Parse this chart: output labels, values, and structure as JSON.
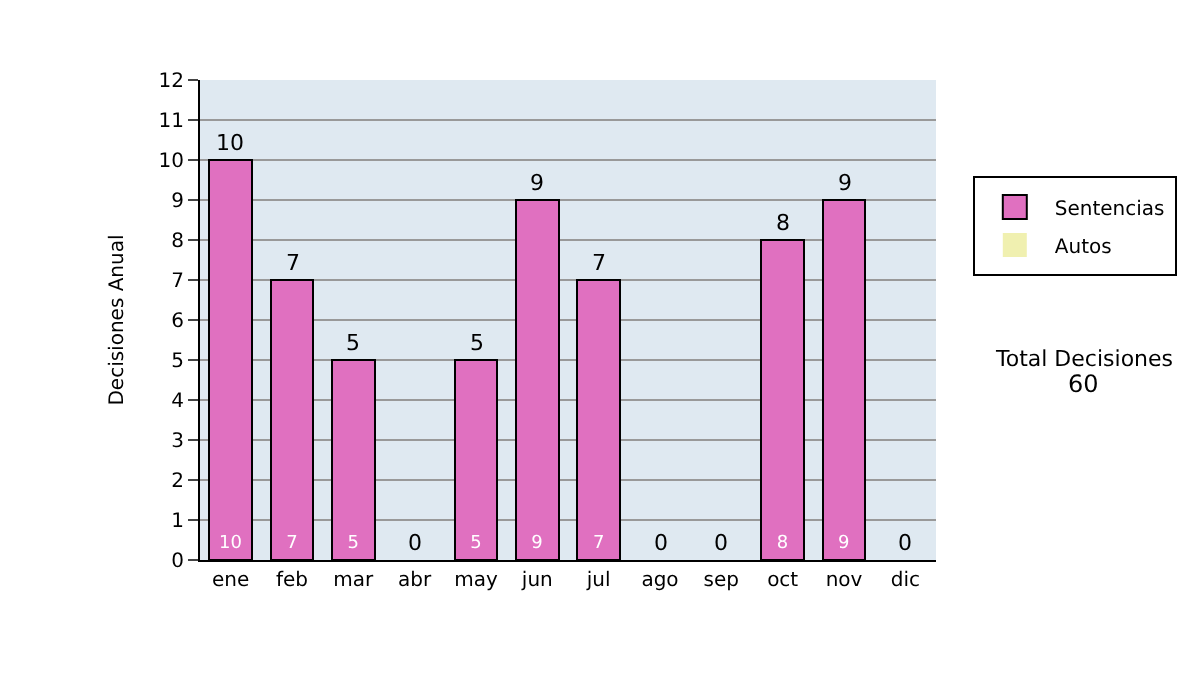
{
  "chart_data": {
    "type": "bar",
    "stacked": true,
    "ylabel": "Decisiones Anual",
    "categories": [
      "ene",
      "feb",
      "mar",
      "abr",
      "may",
      "jun",
      "jul",
      "ago",
      "sep",
      "oct",
      "nov",
      "dic"
    ],
    "series": [
      {
        "name": "Sentencias",
        "color": "#e070c0",
        "values": [
          10,
          7,
          5,
          0,
          5,
          9,
          7,
          0,
          0,
          8,
          9,
          0
        ],
        "value_labels": [
          "10",
          "7",
          "5",
          null,
          "5",
          "9",
          "7",
          null,
          null,
          "8",
          "9",
          null
        ]
      },
      {
        "name": "Autos",
        "color": "#f0f0b0",
        "values": [
          0,
          0,
          0,
          0,
          0,
          0,
          0,
          0,
          0,
          0,
          0,
          0
        ]
      }
    ],
    "totals": [
      "10",
      "7",
      "5",
      "0",
      "5",
      "9",
      "7",
      "0",
      "0",
      "8",
      "9",
      "0"
    ],
    "ylim": [
      0,
      12
    ],
    "yticks": [
      0,
      1,
      2,
      3,
      4,
      5,
      6,
      7,
      8,
      9,
      10,
      11,
      12
    ],
    "grid": "y",
    "legend": "right",
    "annotations": [
      "Total Decisiones",
      "60"
    ]
  }
}
